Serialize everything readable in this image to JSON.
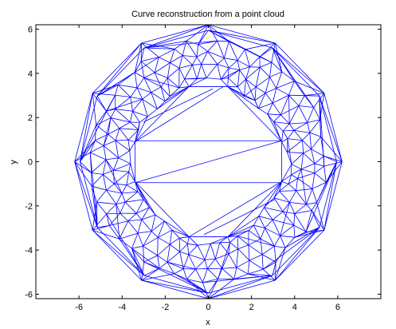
{
  "chart_data": {
    "type": "line",
    "title": "Curve reconstruction from a point cloud",
    "xlabel": "x",
    "ylabel": "y",
    "xlim": [
      -8,
      8
    ],
    "ylim": [
      -6.2,
      6.2
    ],
    "xticks": [
      -6,
      -4,
      -2,
      0,
      2,
      4,
      6
    ],
    "yticks": [
      -6,
      -4,
      -2,
      0,
      2,
      4,
      6
    ],
    "xtick_labels": [
      "-6",
      "-4",
      "-2",
      "0",
      "2",
      "4",
      "6"
    ],
    "ytick_labels": [
      "-6",
      "-4",
      "-2",
      "0",
      "2",
      "4",
      "6"
    ],
    "grid": false,
    "line_color": "#0000ff",
    "outer_polygon": {
      "sides": 12,
      "radius_outer": 6.2,
      "radius_inner": 5.95,
      "angle_offset_deg": 90
    },
    "inner_polygon_vertices": [
      [
        3.4,
        0.9
      ],
      [
        3.4,
        -0.9
      ],
      [
        0.9,
        -3.4
      ],
      [
        -0.9,
        -3.4
      ],
      [
        -3.4,
        -0.9
      ],
      [
        -3.4,
        0.9
      ],
      [
        -0.9,
        3.4
      ],
      [
        0.9,
        3.4
      ]
    ],
    "inner_rectangle": {
      "x": [
        -3.4,
        3.4
      ],
      "y": [
        -0.95,
        0.95
      ]
    },
    "mesh_edge_count": 420,
    "mesh_seed": 7
  }
}
